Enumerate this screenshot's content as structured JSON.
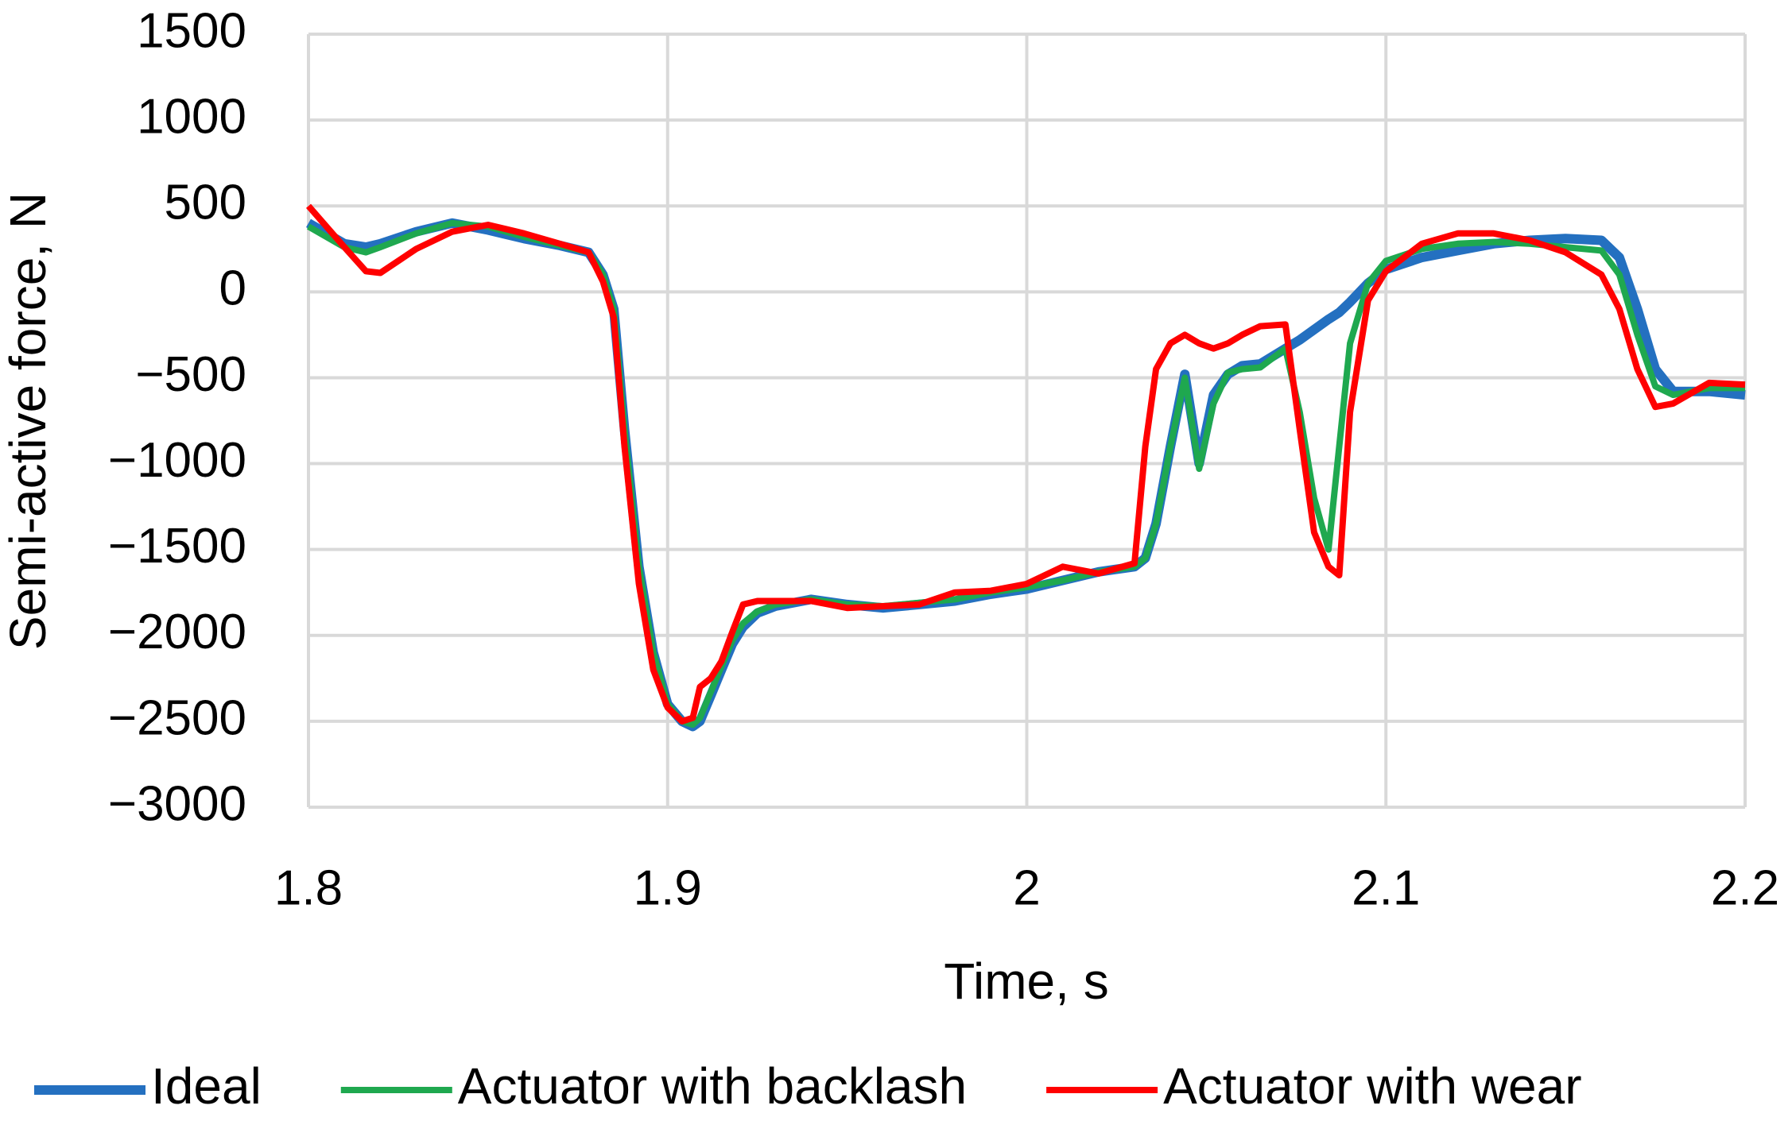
{
  "chart_data": {
    "type": "line",
    "xlabel": "Time, s",
    "ylabel": "Semi-active force, N",
    "x": [
      1.8,
      1.81,
      1.816,
      1.82,
      1.83,
      1.84,
      1.85,
      1.86,
      1.87,
      1.878,
      1.882,
      1.885,
      1.888,
      1.892,
      1.896,
      1.9,
      1.904,
      1.907,
      1.909,
      1.912,
      1.915,
      1.918,
      1.921,
      1.925,
      1.93,
      1.94,
      1.95,
      1.96,
      1.97,
      1.98,
      1.99,
      2.0,
      2.01,
      2.02,
      2.03,
      2.033,
      2.036,
      2.04,
      2.044,
      2.048,
      2.052,
      2.056,
      2.06,
      2.065,
      2.072,
      2.076,
      2.08,
      2.084,
      2.087,
      2.09,
      2.095,
      2.1,
      2.11,
      2.12,
      2.13,
      2.14,
      2.15,
      2.16,
      2.165,
      2.17,
      2.175,
      2.18,
      2.19,
      2.2
    ],
    "series": [
      {
        "name": "Ideal",
        "color": "#2470c0",
        "values": [
          400,
          280,
          260,
          280,
          350,
          400,
          360,
          310,
          270,
          230,
          100,
          -100,
          -800,
          -1600,
          -2100,
          -2400,
          -2500,
          -2530,
          -2500,
          -2350,
          -2200,
          -2050,
          -1950,
          -1870,
          -1830,
          -1790,
          -1820,
          -1840,
          -1820,
          -1800,
          -1760,
          -1730,
          -1680,
          -1630,
          -1600,
          -1550,
          -1350,
          -900,
          -480,
          -1000,
          -600,
          -480,
          -430,
          -420,
          -330,
          -280,
          -220,
          -160,
          -120,
          -60,
          50,
          130,
          200,
          240,
          280,
          300,
          310,
          300,
          200,
          -100,
          -450,
          -580,
          -580,
          -600
        ]
      },
      {
        "name": "Actuator with backlash",
        "color": "#1fa84f",
        "values": [
          380,
          260,
          230,
          260,
          340,
          400,
          380,
          320,
          270,
          230,
          100,
          -100,
          -800,
          -1600,
          -2100,
          -2400,
          -2500,
          -2520,
          -2480,
          -2330,
          -2180,
          -2030,
          -1930,
          -1860,
          -1820,
          -1790,
          -1820,
          -1830,
          -1810,
          -1790,
          -1750,
          -1720,
          -1680,
          -1630,
          -1600,
          -1550,
          -1350,
          -900,
          -500,
          -1030,
          -650,
          -470,
          -450,
          -440,
          -330,
          -700,
          -1200,
          -1500,
          -900,
          -300,
          50,
          180,
          250,
          280,
          290,
          280,
          260,
          240,
          100,
          -250,
          -550,
          -600,
          -560,
          -560
        ]
      },
      {
        "name": "Actuator with wear",
        "color": "#ff0000",
        "values": [
          500,
          260,
          120,
          110,
          250,
          350,
          390,
          340,
          280,
          230,
          60,
          -150,
          -900,
          -1700,
          -2200,
          -2420,
          -2500,
          -2480,
          -2300,
          -2250,
          -2150,
          -1980,
          -1820,
          -1800,
          -1800,
          -1800,
          -1840,
          -1830,
          -1820,
          -1750,
          -1740,
          -1700,
          -1600,
          -1640,
          -1580,
          -900,
          -450,
          -300,
          -250,
          -300,
          -330,
          -300,
          -250,
          -200,
          -190,
          -800,
          -1400,
          -1600,
          -1650,
          -700,
          -50,
          120,
          280,
          340,
          340,
          300,
          230,
          100,
          -100,
          -450,
          -670,
          -650,
          -530,
          -540
        ]
      }
    ],
    "xlim": [
      1.8,
      2.2
    ],
    "xticks": [
      1.8,
      1.9,
      2,
      2.1,
      2.2
    ],
    "ylim": [
      -3000,
      1500
    ],
    "yticks": [
      {
        "value": -3000,
        "label": "−3000"
      },
      {
        "value": -2500,
        "label": "−2500"
      },
      {
        "value": -2000,
        "label": "−2000"
      },
      {
        "value": -1500,
        "label": "−1500"
      },
      {
        "value": -1000,
        "label": "−1000"
      },
      {
        "value": -500,
        "label": "−500"
      },
      0,
      500,
      1000,
      1500
    ],
    "grid": true,
    "legend": "bottom"
  }
}
